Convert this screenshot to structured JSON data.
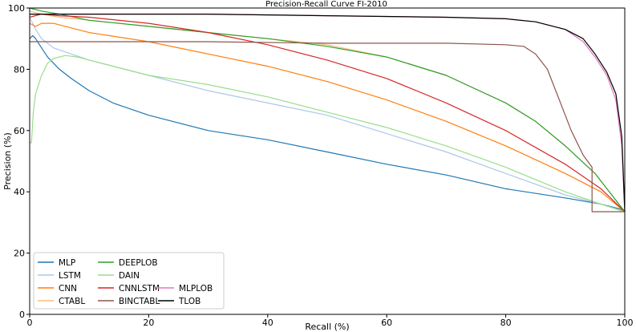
{
  "chart_data": {
    "type": "line",
    "title": "Precision-Recall Curve FI-2010",
    "xlabel": "Recall (%)",
    "ylabel": "Precision (%)",
    "xlim": [
      0,
      100
    ],
    "ylim": [
      0,
      100
    ],
    "xticks": [
      "0",
      "20",
      "40",
      "60",
      "80",
      "100"
    ],
    "yticks": [
      "0",
      "20",
      "40",
      "60",
      "80",
      "100"
    ],
    "legend_position": "lower-left",
    "grid": false,
    "series": [
      {
        "name": "MLP",
        "color": "#1f77b4",
        "points": [
          [
            0,
            90
          ],
          [
            0.5,
            91
          ],
          [
            1,
            90
          ],
          [
            2,
            87
          ],
          [
            3,
            84
          ],
          [
            5,
            80
          ],
          [
            7,
            77
          ],
          [
            10,
            73
          ],
          [
            14,
            69
          ],
          [
            20,
            65
          ],
          [
            30,
            60
          ],
          [
            40,
            57
          ],
          [
            50,
            53
          ],
          [
            60,
            49
          ],
          [
            70,
            45.5
          ],
          [
            80,
            41
          ],
          [
            90,
            38
          ],
          [
            96,
            36
          ],
          [
            99,
            34.5
          ],
          [
            100,
            33.5
          ]
        ]
      },
      {
        "name": "LSTM",
        "color": "#aec7e8",
        "points": [
          [
            0,
            97
          ],
          [
            1,
            93
          ],
          [
            2,
            90
          ],
          [
            4,
            87
          ],
          [
            7,
            85
          ],
          [
            10,
            83
          ],
          [
            20,
            78
          ],
          [
            30,
            73
          ],
          [
            40,
            69
          ],
          [
            50,
            65
          ],
          [
            60,
            59
          ],
          [
            70,
            53
          ],
          [
            80,
            46
          ],
          [
            90,
            39
          ],
          [
            96,
            36
          ],
          [
            100,
            33.5
          ]
        ]
      },
      {
        "name": "CNN",
        "color": "#ff7f0e",
        "points": [
          [
            0,
            95
          ],
          [
            1,
            94
          ],
          [
            2,
            95
          ],
          [
            4,
            95
          ],
          [
            6,
            94
          ],
          [
            10,
            92
          ],
          [
            20,
            89
          ],
          [
            30,
            85
          ],
          [
            40,
            81
          ],
          [
            50,
            76
          ],
          [
            60,
            70
          ],
          [
            70,
            63
          ],
          [
            80,
            55
          ],
          [
            90,
            46
          ],
          [
            96,
            40
          ],
          [
            100,
            33.5
          ]
        ]
      },
      {
        "name": "CTABL",
        "color": "#ffbb78",
        "points": [
          [
            0,
            99
          ],
          [
            2,
            98
          ],
          [
            5,
            97
          ],
          [
            10,
            96
          ],
          [
            20,
            94
          ],
          [
            30,
            92
          ],
          [
            40,
            90
          ],
          [
            50,
            88
          ],
          [
            60,
            84
          ],
          [
            70,
            78
          ],
          [
            80,
            69
          ],
          [
            85,
            63
          ],
          [
            90,
            55
          ],
          [
            95,
            46
          ],
          [
            100,
            33.5
          ]
        ]
      },
      {
        "name": "DEEPLOB",
        "color": "#2ca02c",
        "points": [
          [
            0,
            100
          ],
          [
            2,
            99
          ],
          [
            5,
            98
          ],
          [
            10,
            96
          ],
          [
            20,
            94
          ],
          [
            30,
            92
          ],
          [
            40,
            90
          ],
          [
            50,
            87.5
          ],
          [
            60,
            84
          ],
          [
            70,
            78
          ],
          [
            80,
            69
          ],
          [
            85,
            63
          ],
          [
            90,
            55
          ],
          [
            95,
            46
          ],
          [
            100,
            33.5
          ]
        ]
      },
      {
        "name": "DAIN",
        "color": "#98df8a",
        "points": [
          [
            0,
            56
          ],
          [
            0.3,
            56
          ],
          [
            0.6,
            66
          ],
          [
            1,
            72
          ],
          [
            2,
            78
          ],
          [
            3,
            82
          ],
          [
            4,
            83.5
          ],
          [
            6,
            84.5
          ],
          [
            8,
            84
          ],
          [
            10,
            83
          ],
          [
            20,
            78
          ],
          [
            30,
            75
          ],
          [
            40,
            71
          ],
          [
            50,
            66
          ],
          [
            60,
            61
          ],
          [
            70,
            55
          ],
          [
            80,
            48
          ],
          [
            90,
            40
          ],
          [
            96,
            36
          ],
          [
            100,
            33.5
          ]
        ]
      },
      {
        "name": "CNNLSTM",
        "color": "#d62728",
        "points": [
          [
            0,
            97
          ],
          [
            2,
            98
          ],
          [
            5,
            97.5
          ],
          [
            10,
            97
          ],
          [
            20,
            95
          ],
          [
            30,
            92
          ],
          [
            40,
            88
          ],
          [
            50,
            83
          ],
          [
            60,
            77
          ],
          [
            70,
            69
          ],
          [
            80,
            60
          ],
          [
            90,
            49
          ],
          [
            96,
            41
          ],
          [
            100,
            33.5
          ]
        ]
      },
      {
        "name": "BINCTABL",
        "color": "#8c564b",
        "points": [
          [
            0,
            89
          ],
          [
            10,
            89
          ],
          [
            30,
            89
          ],
          [
            50,
            88.5
          ],
          [
            60,
            88.5
          ],
          [
            70,
            88.5
          ],
          [
            80,
            88
          ],
          [
            83,
            87.5
          ],
          [
            85,
            85
          ],
          [
            87,
            80
          ],
          [
            89,
            70
          ],
          [
            91,
            60
          ],
          [
            93,
            52
          ],
          [
            94.5,
            48
          ],
          [
            94.5,
            33.5
          ],
          [
            100,
            33.5
          ]
        ]
      },
      {
        "name": "MLPLOB",
        "color": "#e377c2",
        "points": [
          [
            0,
            98
          ],
          [
            10,
            98
          ],
          [
            30,
            98
          ],
          [
            50,
            97.5
          ],
          [
            70,
            97
          ],
          [
            80,
            96.5
          ],
          [
            85,
            95.5
          ],
          [
            90,
            93
          ],
          [
            93,
            89
          ],
          [
            95,
            84
          ],
          [
            97,
            78
          ],
          [
            98.5,
            70
          ],
          [
            99.5,
            55
          ],
          [
            100,
            33.5
          ]
        ]
      },
      {
        "name": "TLOB",
        "color": "#000000",
        "points": [
          [
            0,
            98
          ],
          [
            10,
            98
          ],
          [
            30,
            98
          ],
          [
            50,
            97.5
          ],
          [
            70,
            97
          ],
          [
            80,
            96.5
          ],
          [
            85,
            95.5
          ],
          [
            90,
            93
          ],
          [
            93,
            90
          ],
          [
            95,
            85
          ],
          [
            97,
            79
          ],
          [
            98.5,
            72
          ],
          [
            99.5,
            58
          ],
          [
            100,
            33.5
          ]
        ]
      }
    ]
  }
}
